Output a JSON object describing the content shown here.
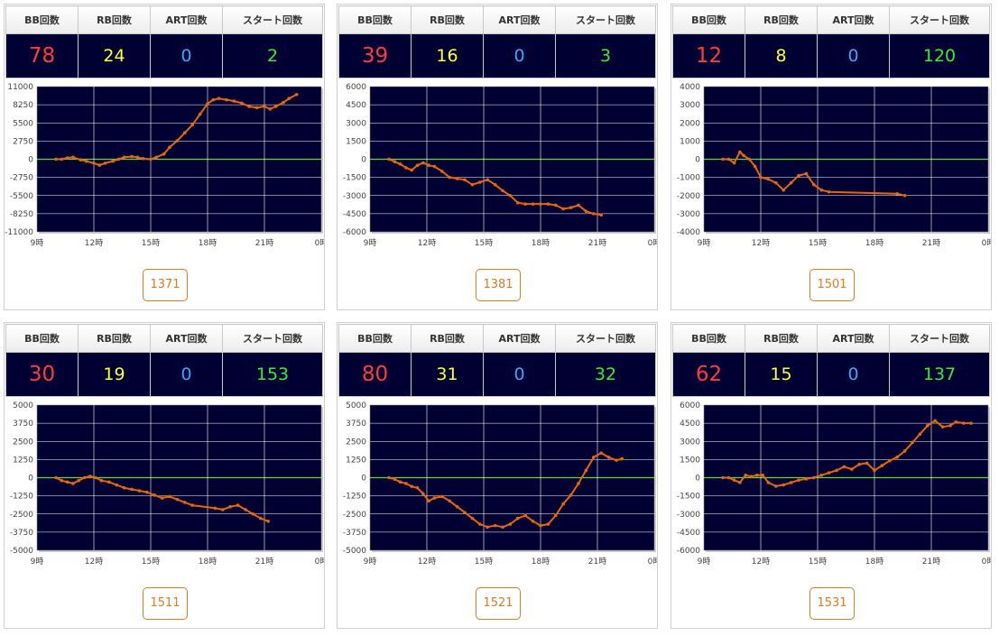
{
  "headers": {
    "bb": "BB回数",
    "rb": "RB回数",
    "art": "ART回数",
    "start": "スタート回数"
  },
  "machines": [
    {
      "number": "1371",
      "bb": "78",
      "rb": "24",
      "art": "0",
      "start": "2"
    },
    {
      "number": "1381",
      "bb": "39",
      "rb": "16",
      "art": "0",
      "start": "3"
    },
    {
      "number": "1501",
      "bb": "12",
      "rb": "8",
      "art": "0",
      "start": "120"
    },
    {
      "number": "1511",
      "bb": "30",
      "rb": "19",
      "art": "0",
      "start": "153"
    },
    {
      "number": "1521",
      "bb": "80",
      "rb": "31",
      "art": "0",
      "start": "32"
    },
    {
      "number": "1531",
      "bb": "62",
      "rb": "15",
      "art": "0",
      "start": "137"
    }
  ],
  "colors": {
    "plot_bg": "#000033",
    "line": "#e8650e",
    "zero_line": "#55dd33",
    "grid": "#ffffff"
  },
  "chart_data": [
    {
      "type": "line",
      "xlim": [
        9,
        24
      ],
      "x_tick_values": [
        9,
        12,
        15,
        18,
        21,
        24
      ],
      "x_ticks": [
        "9時",
        "12時",
        "15時",
        "18時",
        "21時",
        "0時"
      ],
      "ylim": [
        -11000,
        11000
      ],
      "y_ticks": [
        "11000",
        "8250",
        "5500",
        "2750",
        "0",
        "-2750",
        "-5500",
        "-8250",
        "-11000"
      ],
      "x": [
        10,
        10.3,
        10.6,
        10.9,
        11.3,
        11.6,
        12,
        12.3,
        12.6,
        13,
        13.3,
        13.6,
        14,
        14.3,
        14.6,
        15,
        15.3,
        15.7,
        16,
        16.4,
        16.8,
        17.2,
        17.6,
        18,
        18.3,
        18.6,
        19,
        19.4,
        19.8,
        20.2,
        20.6,
        21,
        21.3,
        21.6,
        22,
        22.3,
        22.7
      ],
      "y": [
        0,
        0,
        200,
        300,
        -100,
        -300,
        -600,
        -900,
        -600,
        -300,
        0,
        300,
        400,
        300,
        100,
        0,
        300,
        800,
        1800,
        2800,
        4000,
        5200,
        6800,
        8400,
        9000,
        9200,
        9000,
        8800,
        8500,
        8000,
        7800,
        8000,
        7600,
        8000,
        8600,
        9200,
        9800
      ]
    },
    {
      "type": "line",
      "xlim": [
        9,
        24
      ],
      "x_tick_values": [
        9,
        12,
        15,
        18,
        21,
        24
      ],
      "x_ticks": [
        "9時",
        "12時",
        "15時",
        "18時",
        "21時",
        "0時"
      ],
      "ylim": [
        -6000,
        6000
      ],
      "y_ticks": [
        "6000",
        "4500",
        "3000",
        "1500",
        "0",
        "-1500",
        "-3000",
        "-4500",
        "-6000"
      ],
      "x": [
        10,
        10.3,
        10.6,
        10.9,
        11.2,
        11.5,
        11.8,
        12.1,
        12.4,
        12.8,
        13.2,
        13.6,
        14,
        14.4,
        14.8,
        15.2,
        15.6,
        16,
        16.4,
        16.8,
        17.2,
        17.6,
        18,
        18.4,
        18.8,
        19.2,
        19.6,
        20,
        20.4,
        20.8,
        21.2
      ],
      "y": [
        0,
        -200,
        -400,
        -700,
        -900,
        -500,
        -300,
        -500,
        -600,
        -1000,
        -1500,
        -1600,
        -1700,
        -2100,
        -1900,
        -1700,
        -2100,
        -2600,
        -3000,
        -3600,
        -3700,
        -3700,
        -3700,
        -3700,
        -3800,
        -4100,
        -4000,
        -3800,
        -4300,
        -4500,
        -4600
      ]
    },
    {
      "type": "line",
      "xlim": [
        9,
        24
      ],
      "x_tick_values": [
        9,
        12,
        15,
        18,
        21,
        24
      ],
      "x_ticks": [
        "9時",
        "12時",
        "15時",
        "18時",
        "21時",
        "0時"
      ],
      "ylim": [
        -4000,
        4000
      ],
      "y_ticks": [
        "4000",
        "3000",
        "2000",
        "1000",
        "0",
        "-1000",
        "-2000",
        "-3000",
        "-4000"
      ],
      "x": [
        10,
        10.3,
        10.6,
        10.9,
        11.1,
        11.4,
        11.7,
        12,
        12.4,
        12.8,
        13.2,
        13.6,
        14,
        14.4,
        14.8,
        15.2,
        15.6,
        19.2,
        19.6
      ],
      "y": [
        0,
        0,
        -200,
        400,
        200,
        0,
        -400,
        -1000,
        -1100,
        -1300,
        -1700,
        -1300,
        -900,
        -800,
        -1400,
        -1700,
        -1800,
        -1900,
        -2000
      ]
    },
    {
      "type": "line",
      "xlim": [
        9,
        24
      ],
      "x_tick_values": [
        9,
        12,
        15,
        18,
        21,
        24
      ],
      "x_ticks": [
        "9時",
        "12時",
        "15時",
        "18時",
        "21時",
        "0時"
      ],
      "ylim": [
        -5000,
        5000
      ],
      "y_ticks": [
        "5000",
        "3750",
        "2500",
        "1250",
        "0",
        "-1250",
        "-2500",
        "-3750",
        "-5000"
      ],
      "x": [
        10,
        10.3,
        10.6,
        10.9,
        11.2,
        11.5,
        11.8,
        12.1,
        12.4,
        12.8,
        13.2,
        13.6,
        14,
        14.4,
        14.8,
        15.2,
        15.6,
        16,
        16.4,
        16.8,
        17.2,
        18.4,
        18.8,
        19.2,
        19.6,
        20,
        20.4,
        20.8,
        21.2
      ],
      "y": [
        0,
        -200,
        -300,
        -400,
        -200,
        0,
        100,
        0,
        -200,
        -300,
        -500,
        -700,
        -800,
        -900,
        -1000,
        -1200,
        -1400,
        -1300,
        -1500,
        -1700,
        -1900,
        -2100,
        -2200,
        -2000,
        -1900,
        -2200,
        -2500,
        -2800,
        -3000
      ]
    },
    {
      "type": "line",
      "xlim": [
        9,
        24
      ],
      "x_tick_values": [
        9,
        12,
        15,
        18,
        21,
        24
      ],
      "x_ticks": [
        "9時",
        "12時",
        "15時",
        "18時",
        "21時",
        "0時"
      ],
      "ylim": [
        -5000,
        5000
      ],
      "y_ticks": [
        "5000",
        "3750",
        "2500",
        "1250",
        "0",
        "-1250",
        "-2500",
        "-3750",
        "-5000"
      ],
      "x": [
        10,
        10.3,
        10.6,
        10.9,
        11.2,
        11.5,
        11.8,
        12.1,
        12.4,
        12.8,
        13.2,
        13.6,
        14,
        14.4,
        14.8,
        15.2,
        15.6,
        16,
        16.4,
        16.8,
        17.2,
        17.6,
        18,
        18.4,
        18.8,
        19.2,
        19.6,
        20,
        20.4,
        20.8,
        21.2,
        21.6,
        22,
        22.3
      ],
      "y": [
        0,
        -100,
        -300,
        -400,
        -600,
        -700,
        -1100,
        -1600,
        -1400,
        -1300,
        -1600,
        -2000,
        -2400,
        -2800,
        -3200,
        -3400,
        -3300,
        -3400,
        -3200,
        -2800,
        -2600,
        -3000,
        -3300,
        -3200,
        -2600,
        -1800,
        -1200,
        -400,
        500,
        1400,
        1700,
        1400,
        1200,
        1300
      ]
    },
    {
      "type": "line",
      "xlim": [
        9,
        24
      ],
      "x_tick_values": [
        9,
        12,
        15,
        18,
        21,
        24
      ],
      "x_ticks": [
        "9時",
        "12時",
        "15時",
        "18時",
        "21時",
        "0時"
      ],
      "ylim": [
        -6000,
        6000
      ],
      "y_ticks": [
        "6000",
        "4500",
        "3000",
        "1500",
        "0",
        "-1500",
        "-3000",
        "-4500",
        "-6000"
      ],
      "x": [
        10,
        10.3,
        10.6,
        10.9,
        11.2,
        11.5,
        11.8,
        12.1,
        12.4,
        12.8,
        13.2,
        13.6,
        14,
        14.4,
        14.8,
        15.2,
        15.6,
        16,
        16.4,
        16.8,
        17.2,
        17.6,
        18,
        18.4,
        18.8,
        19.2,
        19.6,
        20,
        20.4,
        20.8,
        21.2,
        21.6,
        22,
        22.3,
        22.7,
        23.1
      ],
      "y": [
        0,
        0,
        -200,
        -400,
        200,
        100,
        200,
        200,
        -400,
        -700,
        -600,
        -400,
        -200,
        -100,
        0,
        200,
        400,
        600,
        900,
        700,
        1100,
        1200,
        600,
        1000,
        1400,
        1700,
        2200,
        2900,
        3600,
        4300,
        4700,
        4200,
        4300,
        4600,
        4500,
        4500
      ]
    }
  ]
}
